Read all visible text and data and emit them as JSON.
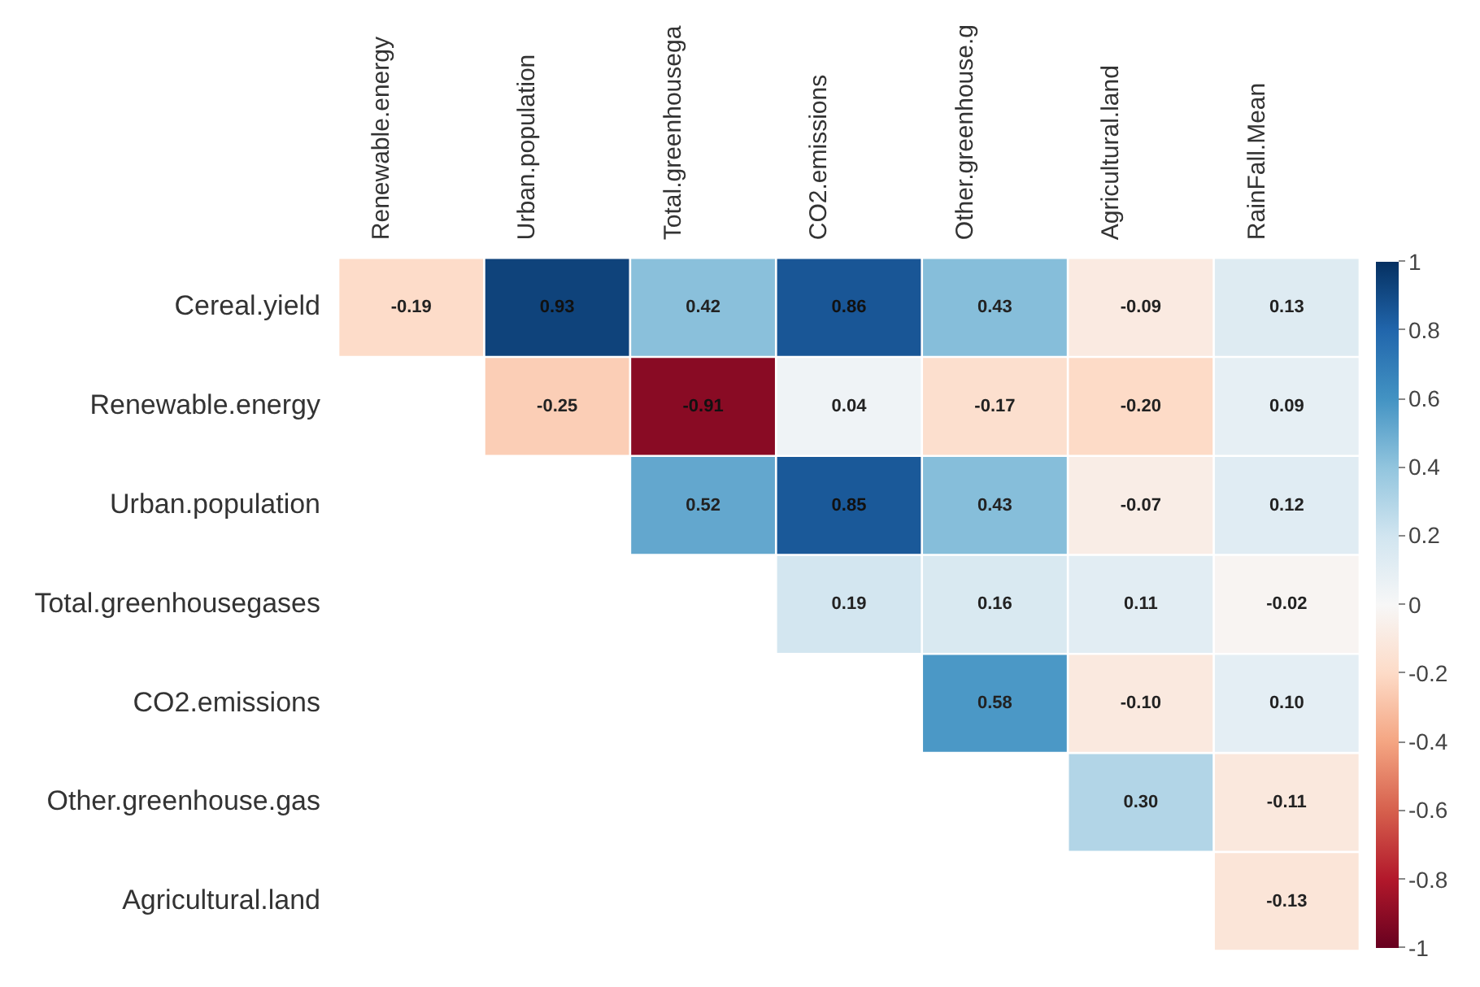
{
  "chart_data": {
    "type": "heatmap",
    "categories": [
      "Renewable.energy",
      "Urban.population",
      "Total.greenhousega",
      "CO2.emissions",
      "Other.greenhouse.g",
      "Agricultural.land",
      "RainFall.Mean"
    ],
    "y_categories": [
      "Cereal.yield",
      "Renewable.energy",
      "Urban.population",
      "Total.greenhousegases",
      "CO2.emissions",
      "Other.greenhouse.gas",
      "Agricultural.land"
    ],
    "cells": [
      [
        -0.19,
        0.93,
        0.42,
        0.86,
        0.43,
        -0.09,
        0.13
      ],
      [
        null,
        -0.25,
        -0.91,
        0.04,
        -0.17,
        -0.2,
        0.09
      ],
      [
        null,
        null,
        0.52,
        0.85,
        0.43,
        -0.07,
        0.12
      ],
      [
        null,
        null,
        null,
        0.19,
        0.16,
        0.11,
        -0.02
      ],
      [
        null,
        null,
        null,
        null,
        0.58,
        -0.1,
        0.1
      ],
      [
        null,
        null,
        null,
        null,
        null,
        0.3,
        -0.11
      ],
      [
        null,
        null,
        null,
        null,
        null,
        null,
        -0.13
      ]
    ],
    "cell_labels": [
      [
        "-0.19",
        "0.93",
        "0.42",
        "0.86",
        "0.43",
        "-0.09",
        "0.13"
      ],
      [
        null,
        "-0.25",
        "-0.91",
        "0.04",
        "-0.17",
        "-0.20",
        "0.09"
      ],
      [
        null,
        null,
        "0.52",
        "0.85",
        "0.43",
        "-0.07",
        "0.12"
      ],
      [
        null,
        null,
        null,
        "0.19",
        "0.16",
        "0.11",
        "-0.02"
      ],
      [
        null,
        null,
        null,
        null,
        "0.58",
        "-0.10",
        "0.10"
      ],
      [
        null,
        null,
        null,
        null,
        null,
        "0.30",
        "-0.11"
      ],
      [
        null,
        null,
        null,
        null,
        null,
        null,
        "-0.13"
      ]
    ],
    "clim": [
      -1,
      1
    ],
    "cticks": [
      {
        "value": -1,
        "label": "-1"
      },
      {
        "value": -0.8,
        "label": "-0.8"
      },
      {
        "value": -0.6,
        "label": "-0.6"
      },
      {
        "value": -0.4,
        "label": "-0.4"
      },
      {
        "value": -0.2,
        "label": "-0.2"
      },
      {
        "value": 0,
        "label": "0"
      },
      {
        "value": 0.2,
        "label": "0.2"
      },
      {
        "value": 0.4,
        "label": "0.4"
      },
      {
        "value": 0.6,
        "label": "0.6"
      },
      {
        "value": 0.8,
        "label": "0.8"
      },
      {
        "value": 1,
        "label": "1"
      }
    ]
  }
}
